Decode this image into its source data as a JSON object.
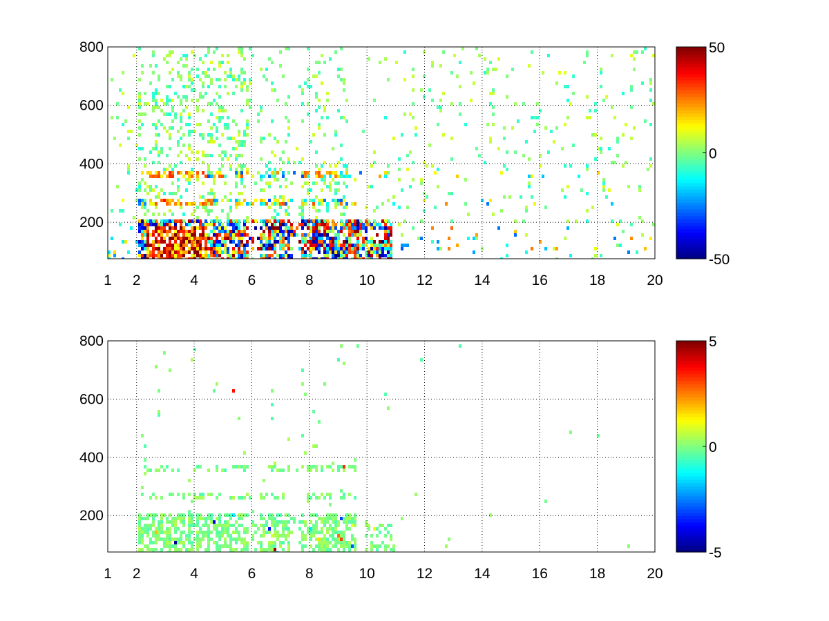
{
  "chart_data": [
    {
      "type": "heatmap",
      "title": "",
      "xlabel": "",
      "ylabel": "",
      "xlim": [
        1,
        20
      ],
      "ylim": [
        75,
        800
      ],
      "xticks": [
        "1",
        "2",
        "4",
        "6",
        "8",
        "10",
        "12",
        "14",
        "16",
        "18",
        "20"
      ],
      "xtick_values": [
        1,
        2,
        4,
        6,
        8,
        10,
        12,
        14,
        16,
        18,
        20
      ],
      "yticks": [
        "200",
        "400",
        "600",
        "800"
      ],
      "ytick_values": [
        200,
        400,
        600,
        800
      ],
      "grid": true,
      "colormap": "jet",
      "colorbar": {
        "min": -50,
        "max": 50,
        "ticks": [
          "-50",
          "0",
          "50"
        ],
        "tick_values": [
          -50,
          0,
          50
        ],
        "placement": "right"
      },
      "strong_bands_y": [
        85,
        115,
        150,
        180,
        275,
        370
      ],
      "dense_region_x": [
        2,
        10.8
      ],
      "sparse_region_x": [
        10.8,
        20
      ]
    },
    {
      "type": "heatmap",
      "title": "",
      "xlabel": "",
      "ylabel": "",
      "xlim": [
        1,
        20
      ],
      "ylim": [
        75,
        800
      ],
      "xticks": [
        "1",
        "2",
        "4",
        "6",
        "8",
        "10",
        "12",
        "14",
        "16",
        "18",
        "20"
      ],
      "xtick_values": [
        1,
        2,
        4,
        6,
        8,
        10,
        12,
        14,
        16,
        18,
        20
      ],
      "yticks": [
        "200",
        "400",
        "600",
        "800"
      ],
      "ytick_values": [
        200,
        400,
        600,
        800
      ],
      "grid": true,
      "colormap": "jet",
      "colorbar": {
        "min": -5,
        "max": 5,
        "ticks": [
          "-5",
          "0",
          "5"
        ],
        "tick_values": [
          -5,
          0,
          5
        ],
        "placement": "right"
      },
      "strong_bands_y": [
        85,
        115,
        150,
        180,
        275,
        370
      ],
      "dense_region_x": [
        2,
        9.6
      ],
      "sparse_region_x": [
        9.6,
        20
      ]
    }
  ]
}
